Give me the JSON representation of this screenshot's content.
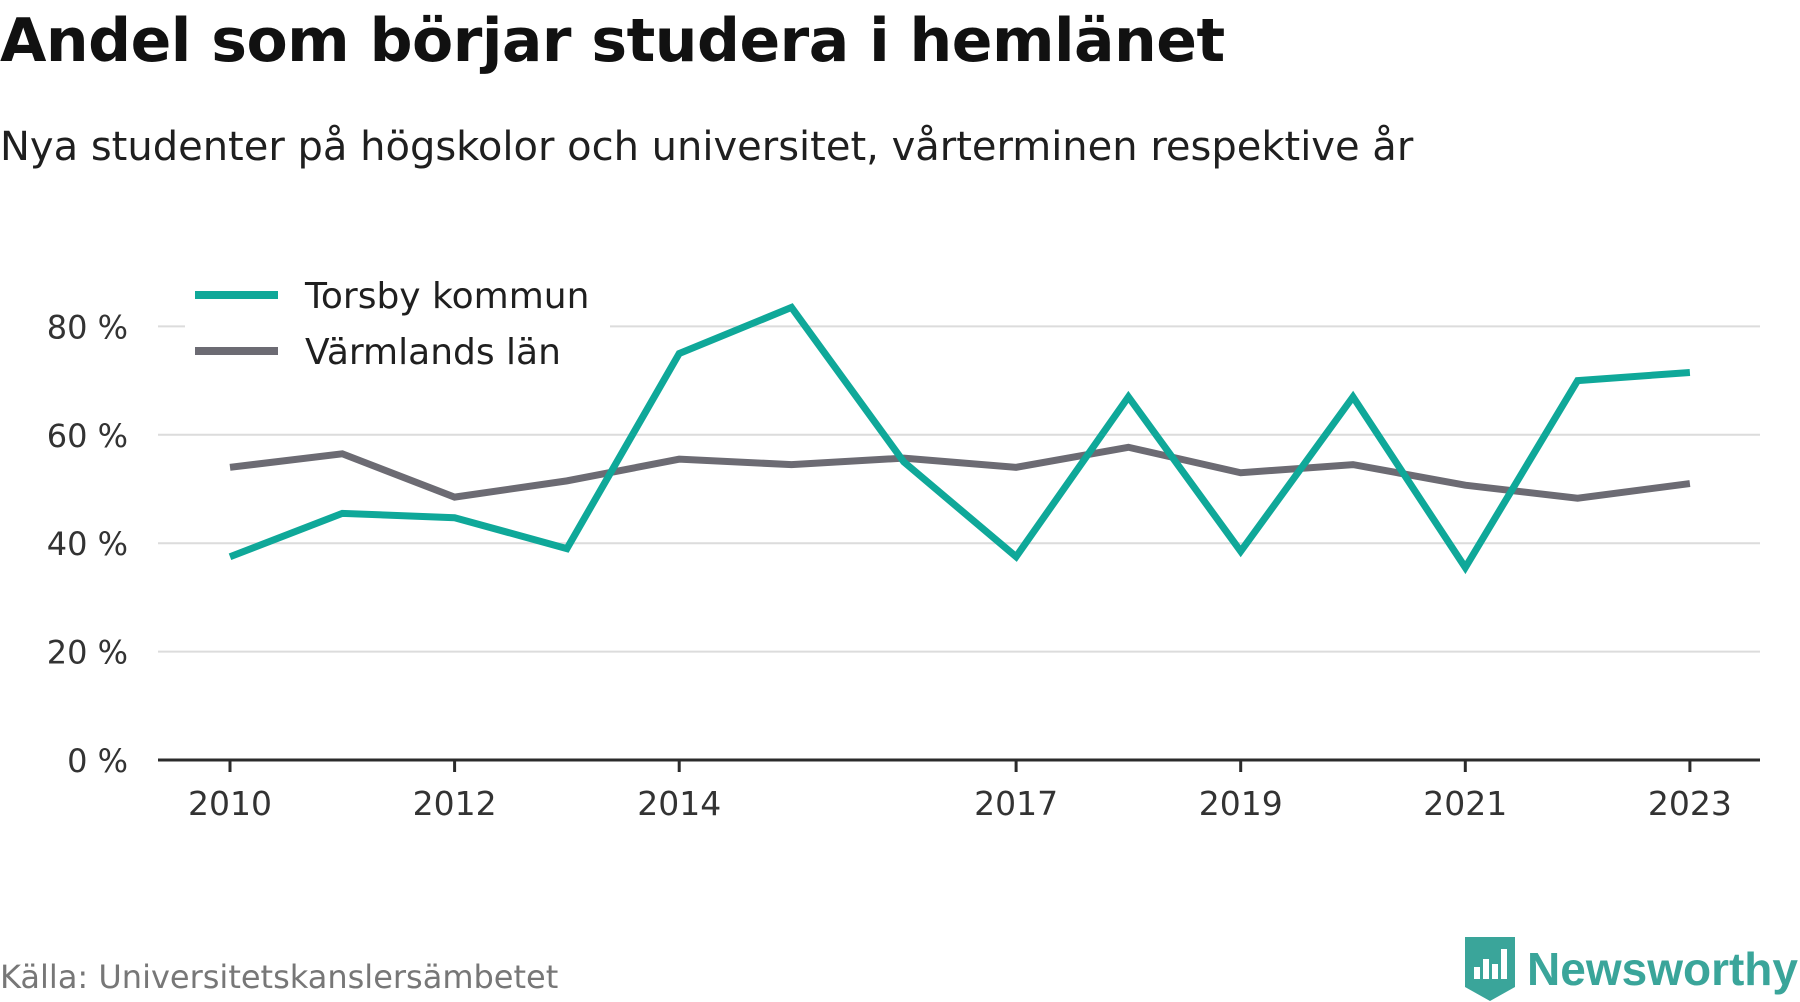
{
  "header": {
    "title": "Andel som börjar studera i hemlänet",
    "subtitle": "Nya studenter på högskolor och universitet, vårterminen respektive år"
  },
  "footer": {
    "source": "Källa: Universitetskanslersämbetet",
    "brand": "Newsworthy",
    "brand_icon": "bar-chart-tag-icon",
    "brand_color": "#3aa59a"
  },
  "chart_data": {
    "type": "line",
    "x": [
      2010,
      2011,
      2012,
      2013,
      2014,
      2015,
      2016,
      2017,
      2018,
      2019,
      2020,
      2021,
      2022,
      2023
    ],
    "xticks": [
      2010,
      2012,
      2014,
      2017,
      2019,
      2021,
      2023
    ],
    "yticks": [
      0,
      20,
      40,
      60,
      80
    ],
    "ytick_labels": [
      "0 %",
      "20 %",
      "40 %",
      "60 %",
      "80 %"
    ],
    "ylim": [
      0,
      90
    ],
    "grid": true,
    "legend_position": "top-left",
    "series": [
      {
        "name": "Torsby kommun",
        "color": "#0fa899",
        "values": [
          37.5,
          45.5,
          44.7,
          39,
          75,
          83.5,
          55,
          37.5,
          67,
          38.5,
          67,
          35.5,
          70,
          71.5
        ]
      },
      {
        "name": "Värmlands län",
        "color": "#6c6b73",
        "values": [
          54,
          56.5,
          48.5,
          51.5,
          55.5,
          54.5,
          55.7,
          54,
          57.7,
          53,
          54.5,
          50.7,
          48.3,
          51
        ]
      }
    ]
  }
}
